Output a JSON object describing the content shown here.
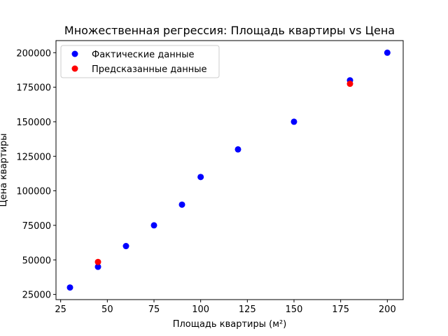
{
  "chart_data": {
    "type": "scatter",
    "title": "Множественная регрессия: Площадь квартиры vs Цена",
    "xlabel": "Площадь квартиры (м²)",
    "ylabel": "Цена квартиры",
    "xlim": [
      22.5,
      208.5
    ],
    "ylim": [
      21250,
      208750
    ],
    "xticks": [
      25,
      50,
      75,
      100,
      125,
      150,
      175,
      200
    ],
    "yticks": [
      25000,
      50000,
      75000,
      100000,
      125000,
      150000,
      175000,
      200000
    ],
    "grid": false,
    "legend_position": "top-left",
    "series": [
      {
        "name": "Фактические данные",
        "color": "#0000ff",
        "points": [
          {
            "x": 30,
            "y": 30000
          },
          {
            "x": 45,
            "y": 45000
          },
          {
            "x": 60,
            "y": 60000
          },
          {
            "x": 75,
            "y": 75000
          },
          {
            "x": 90,
            "y": 90000
          },
          {
            "x": 100,
            "y": 110000
          },
          {
            "x": 120,
            "y": 130000
          },
          {
            "x": 150,
            "y": 150000
          },
          {
            "x": 180,
            "y": 180000
          },
          {
            "x": 200,
            "y": 200000
          }
        ]
      },
      {
        "name": "Предсказанные данные",
        "color": "#ff0000",
        "points": [
          {
            "x": 45,
            "y": 48500
          },
          {
            "x": 180,
            "y": 177500
          }
        ]
      }
    ]
  }
}
